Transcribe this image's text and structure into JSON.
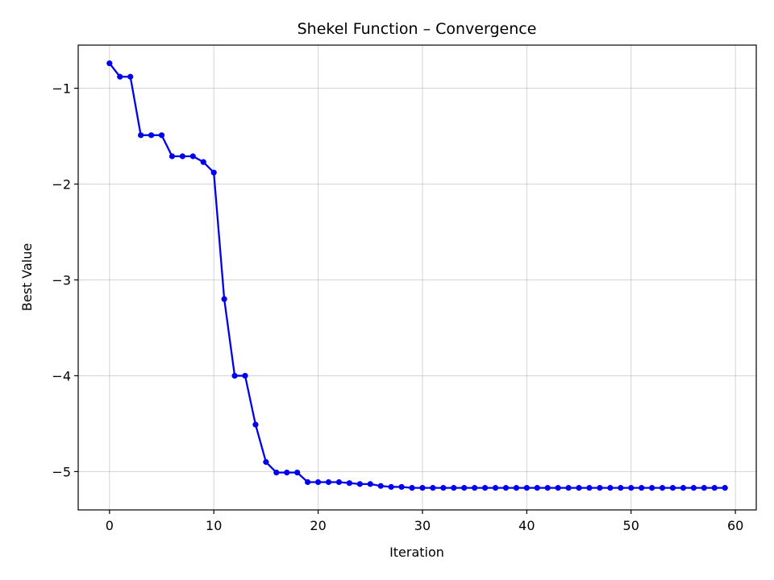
{
  "chart_data": {
    "type": "line",
    "title": "Shekel Function – Convergence",
    "xlabel": "Iteration",
    "ylabel": "Best Value",
    "xlim": [
      -3,
      62
    ],
    "ylim": [
      -5.4,
      -0.55
    ],
    "x_ticks": [
      0,
      10,
      20,
      30,
      40,
      50,
      60
    ],
    "x_tick_labels": [
      "0",
      "10",
      "20",
      "30",
      "40",
      "50",
      "60"
    ],
    "y_ticks": [
      -1,
      -2,
      -3,
      -4,
      -5
    ],
    "y_tick_labels": [
      "−1",
      "−2",
      "−3",
      "−4",
      "−5"
    ],
    "grid": true,
    "series": [
      {
        "name": "Best Value",
        "color": "#0000ee",
        "marker": "circle",
        "x": [
          0,
          1,
          2,
          3,
          4,
          5,
          6,
          7,
          8,
          9,
          10,
          11,
          12,
          13,
          14,
          15,
          16,
          17,
          18,
          19,
          20,
          21,
          22,
          23,
          24,
          25,
          26,
          27,
          28,
          29,
          30,
          31,
          32,
          33,
          34,
          35,
          36,
          37,
          38,
          39,
          40,
          41,
          42,
          43,
          44,
          45,
          46,
          47,
          48,
          49,
          50,
          51,
          52,
          53,
          54,
          55,
          56,
          57,
          58,
          59
        ],
        "values": [
          -0.74,
          -0.88,
          -0.88,
          -1.49,
          -1.49,
          -1.49,
          -1.71,
          -1.71,
          -1.71,
          -1.77,
          -1.88,
          -3.2,
          -4.0,
          -4.0,
          -4.51,
          -4.9,
          -5.01,
          -5.01,
          -5.01,
          -5.11,
          -5.11,
          -5.11,
          -5.11,
          -5.12,
          -5.13,
          -5.13,
          -5.15,
          -5.16,
          -5.16,
          -5.17,
          -5.17,
          -5.17,
          -5.17,
          -5.17,
          -5.17,
          -5.17,
          -5.17,
          -5.17,
          -5.17,
          -5.17,
          -5.17,
          -5.17,
          -5.17,
          -5.17,
          -5.17,
          -5.17,
          -5.17,
          -5.17,
          -5.17,
          -5.17,
          -5.17,
          -5.17,
          -5.17,
          -5.17,
          -5.17,
          -5.17,
          -5.17,
          -5.17,
          -5.17,
          -5.17
        ]
      }
    ]
  }
}
